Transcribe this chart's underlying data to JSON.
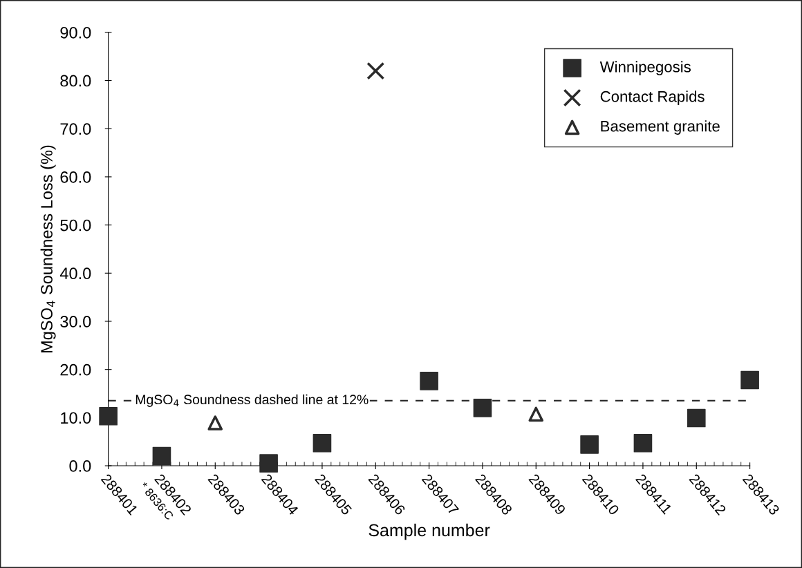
{
  "chart_data": {
    "type": "scatter",
    "xlabel": "Sample number",
    "ylabel": "MgSO$_{4}$ Soundness Loss (%)",
    "categories": [
      "288401",
      "288402",
      "288403",
      "288404",
      "288405",
      "288406",
      "288407",
      "288408",
      "288409",
      "288410",
      "288411",
      "288412",
      "288413"
    ],
    "series": [
      {
        "name": "Winnipegosis",
        "color": "#2b2b2b",
        "marker": "square",
        "values": [
          10.3,
          2.0,
          null,
          0.5,
          4.7,
          null,
          17.6,
          12.0,
          null,
          4.4,
          4.7,
          9.9,
          17.8
        ]
      },
      {
        "name": "Contact Rapids",
        "color": "#2b2b2b",
        "marker": "cross",
        "values": [
          null,
          null,
          null,
          null,
          null,
          82.0,
          null,
          null,
          null,
          null,
          null,
          null,
          null
        ]
      },
      {
        "name": "Basement granite",
        "color": "#2b2b2b",
        "marker": "triangle",
        "values": [
          null,
          null,
          8.9,
          null,
          null,
          null,
          null,
          null,
          10.7,
          null,
          null,
          null,
          null
        ]
      }
    ],
    "ylim": [
      0,
      90
    ],
    "yticks": [
      {
        "value": 0,
        "label": "0.0"
      },
      {
        "value": 10,
        "label": "10.0"
      },
      {
        "value": 20,
        "label": "20.0"
      },
      {
        "value": 30,
        "label": "30.0"
      },
      {
        "value": 40,
        "label": "40.0"
      },
      {
        "value": 50,
        "label": "50.0"
      },
      {
        "value": 60,
        "label": "60.0"
      },
      {
        "value": 70,
        "label": "70.0"
      },
      {
        "value": 80,
        "label": "80.0"
      },
      {
        "value": 90,
        "label": "90.0"
      }
    ],
    "ref_lines": [
      {
        "axis": "y",
        "value": 13.5,
        "label": "MgSO$_{4}$ Soundness dashed line at 12%",
        "color": "#2b2b2b",
        "line_style": "dashed"
      }
    ],
    "annotations": [
      "* 8636:C"
    ],
    "grid": false,
    "legend": "top right"
  }
}
